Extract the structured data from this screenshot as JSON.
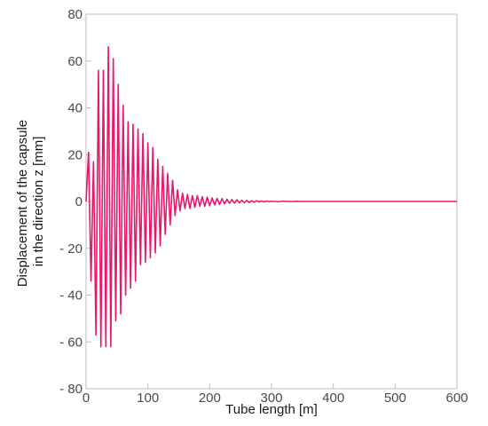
{
  "chart_data": {
    "type": "line",
    "title": "",
    "xlabel": "Tube length [m]",
    "ylabel_lines": [
      "Displacement of the capsule",
      "in the direction z [mm]"
    ],
    "xlim": [
      0,
      600
    ],
    "ylim": [
      -80,
      80
    ],
    "x_ticks": [
      0,
      100,
      200,
      300,
      400,
      500,
      600
    ],
    "x_tick_labels": [
      "0",
      "100",
      "200",
      "300",
      "400",
      "500",
      "600"
    ],
    "y_ticks": [
      -80,
      -60,
      -40,
      -20,
      0,
      20,
      40,
      60,
      80
    ],
    "y_tick_labels": [
      "- 80",
      "- 60",
      "- 40",
      "- 20",
      "0",
      "20",
      "40",
      "60",
      "80"
    ],
    "grid": false,
    "legend": "none",
    "series": [
      {
        "color": "#e8176b",
        "description": "damped oscillation, period about 7.7 m",
        "x": [
          0,
          4,
          8,
          12,
          16,
          20,
          24,
          28,
          32,
          36,
          40,
          44,
          48,
          52,
          56,
          60,
          64,
          68,
          72,
          76,
          80,
          84,
          88,
          92,
          96,
          100,
          104,
          108,
          112,
          116,
          120,
          124,
          128,
          132,
          136,
          140,
          144,
          148,
          152,
          156,
          160,
          164,
          168,
          172,
          176,
          180,
          184,
          188,
          192,
          196,
          200,
          204,
          208,
          212,
          216,
          220,
          224,
          228,
          232,
          236,
          240,
          244,
          248,
          252,
          256,
          260,
          264,
          268,
          272,
          276,
          280,
          284,
          288,
          292,
          296,
          300,
          310,
          320,
          330,
          340,
          350,
          360,
          380,
          400,
          450,
          500,
          550,
          600
        ],
        "y": [
          0,
          21,
          -34,
          17,
          -57,
          56,
          -62,
          56,
          -62,
          66,
          -62,
          61,
          -51,
          50,
          -48,
          41,
          -40,
          34,
          -37,
          33,
          -34,
          31,
          -27,
          29,
          -26,
          25,
          -24,
          23,
          -22,
          18,
          -19,
          15,
          -14,
          12,
          -10,
          9,
          -6,
          5,
          -4,
          3.5,
          -3,
          3,
          -3,
          2.5,
          -2.5,
          2.5,
          -2,
          2,
          -2,
          1.8,
          -1.8,
          1.5,
          -1.5,
          1.3,
          -1.3,
          1.2,
          -1,
          1,
          -0.8,
          0.8,
          -0.7,
          0.7,
          -0.6,
          0.5,
          -0.5,
          0.4,
          -0.4,
          0.3,
          -0.3,
          0.3,
          -0.2,
          0.2,
          -0.2,
          0.2,
          -0.1,
          0.1,
          -0.1,
          0.1,
          -0.05,
          0.05,
          0,
          0,
          0,
          0,
          0,
          0,
          0,
          0
        ]
      }
    ]
  }
}
